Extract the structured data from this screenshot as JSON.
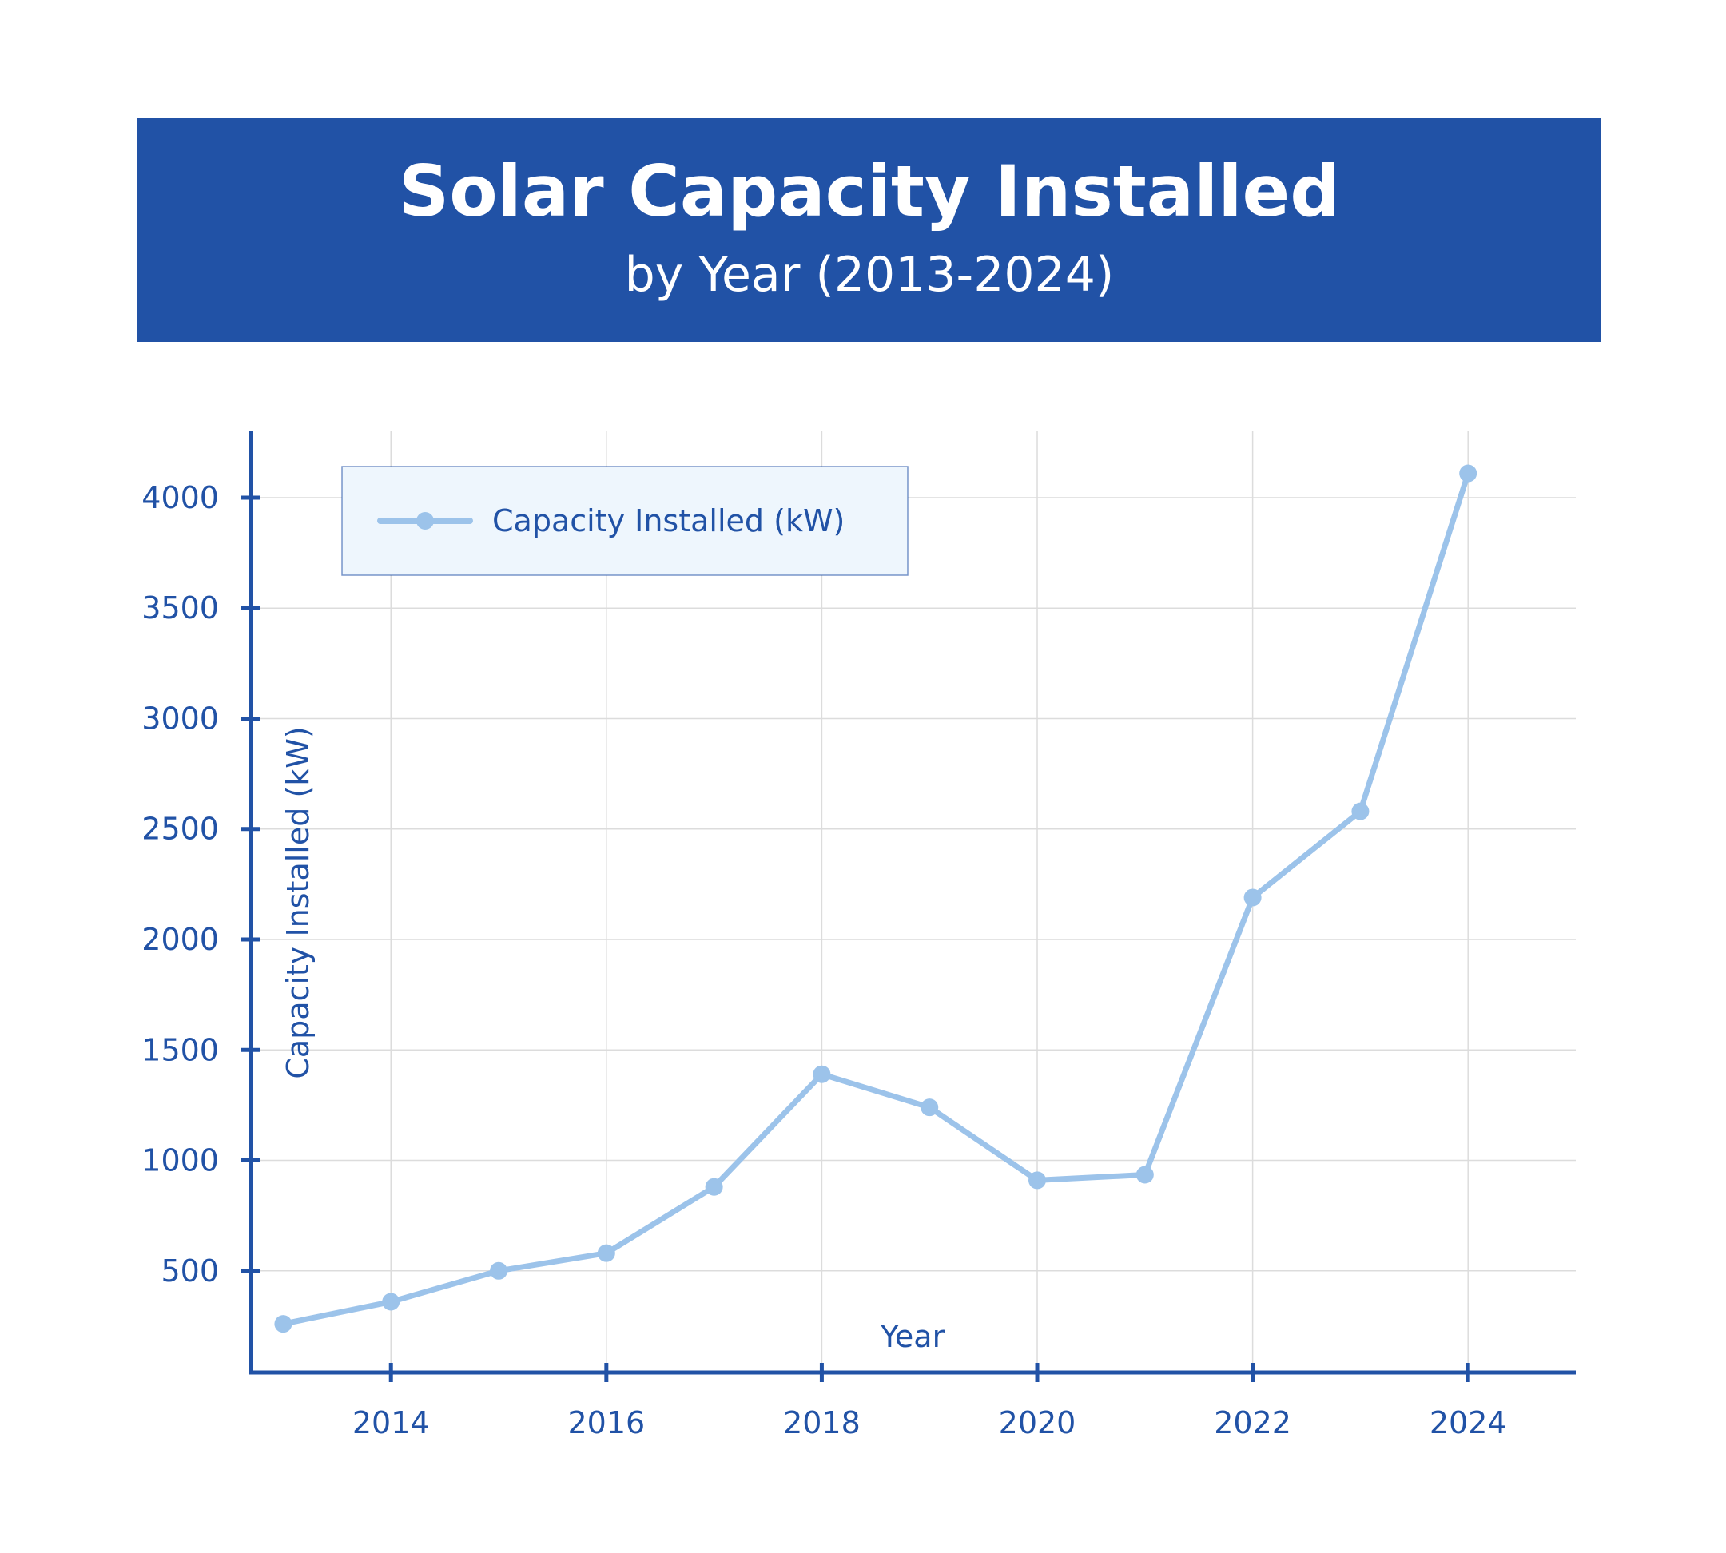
{
  "header": {
    "title": "Solar Capacity Installed",
    "subtitle": "by Year (2013-2024)"
  },
  "colors": {
    "header_bg": "#2152a6",
    "axis": "#2152a6",
    "text": "#2152a6",
    "series_line": "#9cc3ea",
    "legend_bg": "#eef6fd",
    "grid": "#dcdcdc"
  },
  "chart_data": {
    "type": "line",
    "xlabel": "Year",
    "ylabel": "Capacity Installed (kW)",
    "xlim": [
      2012.7,
      2025.0
    ],
    "ylim": [
      40,
      4300
    ],
    "x_ticks": [
      2014,
      2016,
      2018,
      2020,
      2022,
      2024
    ],
    "y_ticks": [
      500,
      1000,
      1500,
      2000,
      2500,
      3000,
      3500,
      4000
    ],
    "grid": true,
    "legend_position": "top-left",
    "series": [
      {
        "name": "Capacity Installed (kW)",
        "x": [
          2013,
          2014,
          2015,
          2016,
          2017,
          2018,
          2019,
          2020,
          2021,
          2022,
          2023,
          2024
        ],
        "y": [
          260,
          360,
          500,
          580,
          880,
          1390,
          1240,
          910,
          935,
          2190,
          2580,
          4110
        ]
      }
    ]
  }
}
